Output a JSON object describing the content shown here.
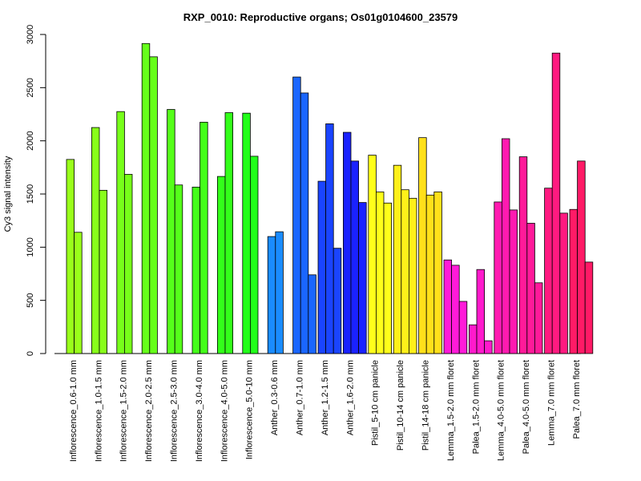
{
  "chart_data": {
    "type": "bar",
    "title": "RXP_0010: Reproductive organs; Os01g0104600_23579",
    "xlabel": "",
    "ylabel": "Cy3 signal intensity",
    "ylim": [
      0,
      3000
    ],
    "yticks": [
      0,
      500,
      1000,
      1500,
      2000,
      2500,
      3000
    ],
    "grid": false,
    "legend": "none",
    "groups": [
      {
        "label": "Inflorescence_0.6-1.0 mm",
        "color": "#99ff1a",
        "values": [
          1825,
          1140
        ]
      },
      {
        "label": "Inflorescence_1.0-1.5 mm",
        "color": "#88ff1a",
        "values": [
          2125,
          1535
        ]
      },
      {
        "label": "Inflorescence_1.5-2.0 mm",
        "color": "#77ff1a",
        "values": [
          2275,
          1685
        ]
      },
      {
        "label": "Inflorescence_2.0-2.5 mm",
        "color": "#66ff1a",
        "values": [
          2915,
          2790
        ]
      },
      {
        "label": "Inflorescence_2.5-3.0 mm",
        "color": "#55ff1a",
        "values": [
          2295,
          1585
        ]
      },
      {
        "label": "Inflorescence_3.0-4.0 mm",
        "color": "#44ff1a",
        "values": [
          1565,
          2175
        ]
      },
      {
        "label": "Inflorescence_4.0-5.0 mm",
        "color": "#33ff1a",
        "values": [
          1665,
          2265
        ]
      },
      {
        "label": "Inflorescence_5.0-10 mm",
        "color": "#22ff1a",
        "values": [
          2260,
          1855
        ]
      },
      {
        "label": "Anther_0.3-0.6 mm",
        "color": "#1a8cff",
        "values": [
          1100,
          1145
        ]
      },
      {
        "label": "Anther_0.7-1.0 mm",
        "color": "#1a66ff",
        "values": [
          2600,
          2450,
          740
        ]
      },
      {
        "label": "Anther_1.2-1.5 mm",
        "color": "#1a44ff",
        "values": [
          1620,
          2160,
          990
        ]
      },
      {
        "label": "Anther_1.6-2.0 mm",
        "color": "#1a22ff",
        "values": [
          2080,
          1810,
          1420
        ]
      },
      {
        "label": "Pistil_5-10 cm panicle",
        "color": "#ffff1a",
        "values": [
          1865,
          1520,
          1415
        ]
      },
      {
        "label": "Pistil_10-14 cm panicle",
        "color": "#fff01a",
        "values": [
          1770,
          1540,
          1460
        ]
      },
      {
        "label": "Pistil_14-18 cm panicle",
        "color": "#ffe01a",
        "values": [
          2030,
          1490,
          1520
        ]
      },
      {
        "label": "Lemma_1.5-2.0 mm floret",
        "color": "#ff1ad9",
        "values": [
          880,
          830,
          490
        ]
      },
      {
        "label": "Palea_1.5-2.0 mm floret",
        "color": "#ff1acc",
        "values": [
          270,
          790,
          120
        ]
      },
      {
        "label": "Lemma_4.0-5.0 mm floret",
        "color": "#ff1ab0",
        "values": [
          1425,
          2020,
          1350
        ]
      },
      {
        "label": "Palea_4.0-5.0 mm floret",
        "color": "#ff1a99",
        "values": [
          1850,
          1225,
          665
        ]
      },
      {
        "label": "Lemma_7.0 mm floret",
        "color": "#ff1a80",
        "values": [
          1555,
          2825,
          1320
        ]
      },
      {
        "label": "Palea_7.0 mm floret",
        "color": "#ff1a66",
        "values": [
          1355,
          1810,
          860
        ]
      }
    ]
  }
}
